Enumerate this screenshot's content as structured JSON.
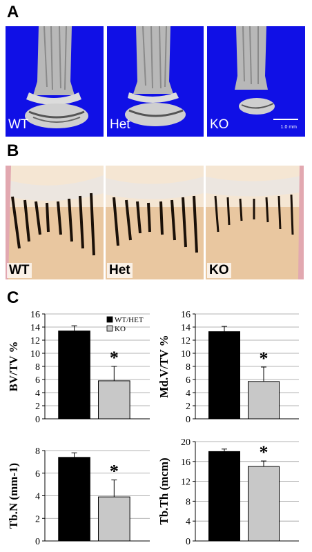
{
  "panel_labels": {
    "a": "A",
    "b": "B",
    "c": "C"
  },
  "panel_a": {
    "images": [
      {
        "label": "WT"
      },
      {
        "label": "Het"
      },
      {
        "label": "KO"
      }
    ],
    "scale_text": "1.0 mm"
  },
  "panel_b": {
    "images": [
      {
        "label": "WT"
      },
      {
        "label": "Het"
      },
      {
        "label": "KO"
      }
    ]
  },
  "colors": {
    "wt_het": "#000000",
    "ko": "#c8c8c8",
    "panel_a_bg": "#1010e6"
  },
  "legend": [
    {
      "label": "WT/HET",
      "color": "#000000"
    },
    {
      "label": "KO",
      "color": "#c8c8c8"
    }
  ],
  "chart_data": [
    {
      "type": "bar",
      "categories": [
        "WT/HET",
        "KO"
      ],
      "values": [
        13.4,
        5.8
      ],
      "errors": [
        0.8,
        2.2
      ],
      "significance": [
        null,
        "*"
      ],
      "ylabel": "BV/TV %",
      "ylim": [
        0,
        16
      ],
      "yticks": [
        0,
        2,
        4,
        6,
        8,
        10,
        12,
        14,
        16
      ],
      "grid": true,
      "legend": "top-right"
    },
    {
      "type": "bar",
      "categories": [
        "WT/HET",
        "KO"
      ],
      "values": [
        13.3,
        5.7
      ],
      "errors": [
        0.8,
        2.2
      ],
      "significance": [
        null,
        "*"
      ],
      "ylabel": "Md.V/TV %",
      "ylim": [
        0,
        16
      ],
      "yticks": [
        0,
        2,
        4,
        6,
        8,
        10,
        12,
        14,
        16
      ],
      "grid": true
    },
    {
      "type": "bar",
      "categories": [
        "WT/HET",
        "KO"
      ],
      "values": [
        7.4,
        3.9
      ],
      "errors": [
        0.4,
        1.5
      ],
      "significance": [
        null,
        "*"
      ],
      "ylabel": "Tb.N (mm-1)",
      "ylim": [
        0,
        8
      ],
      "yticks": [
        0,
        2,
        4,
        6,
        8
      ],
      "grid": true
    },
    {
      "type": "bar",
      "categories": [
        "WT/HET",
        "KO"
      ],
      "values": [
        18.0,
        15.0
      ],
      "errors": [
        0.5,
        1.1
      ],
      "significance": [
        null,
        "*"
      ],
      "ylabel": "Tb.Th (mcm)",
      "ylim": [
        0,
        20
      ],
      "yticks": [
        0,
        4,
        8,
        12,
        16,
        20
      ],
      "grid": true
    }
  ]
}
